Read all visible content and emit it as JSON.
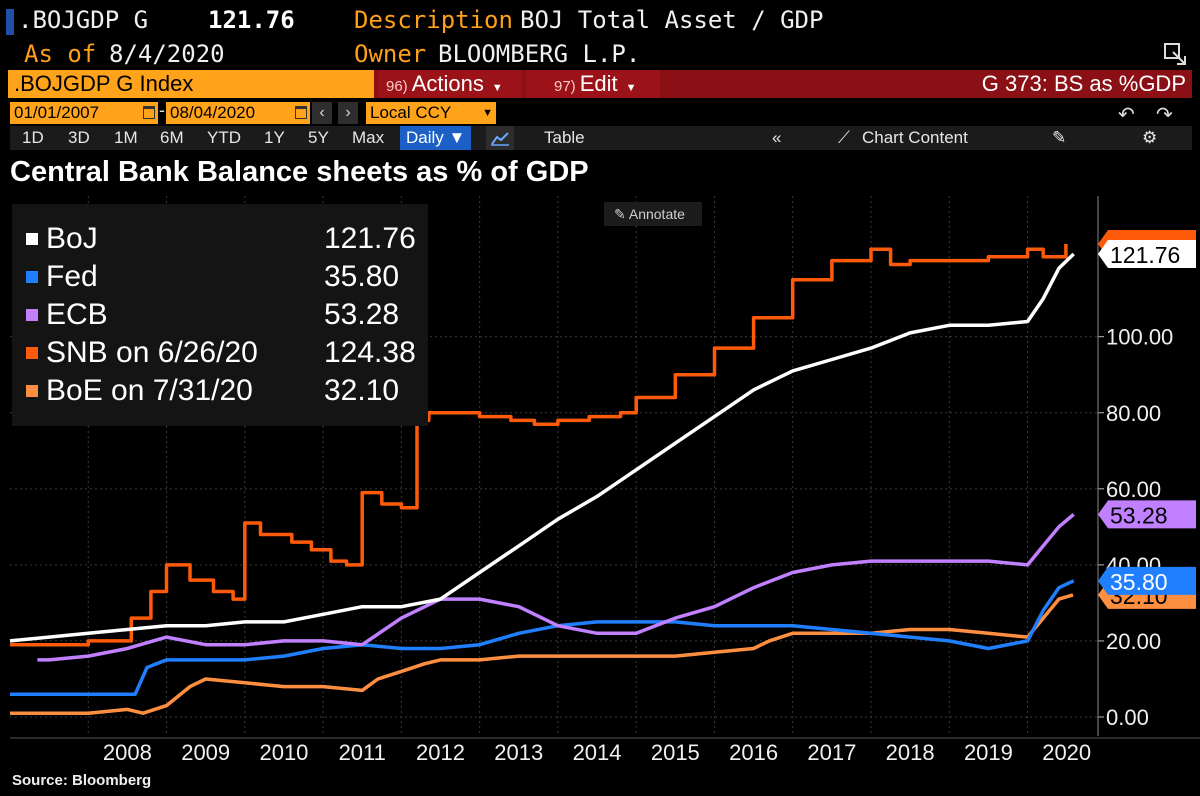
{
  "header": {
    "ticker": ".BOJGDP G",
    "last_value": "121.76",
    "description_label": "Description",
    "description": "BOJ Total Asset / GDP",
    "asof_label": "As of",
    "asof_date": "8/4/2020",
    "owner_label": "Owner",
    "owner": "BLOOMBERG L.P."
  },
  "command_bar": {
    "security": ".BOJGDP G Index",
    "actions_code": "96)",
    "actions_label": "Actions",
    "edit_code": "97)",
    "edit_label": "Edit",
    "function_label": "G 373: BS as %GDP"
  },
  "date_range": {
    "start": "01/01/2007",
    "dash": "-",
    "end": "08/04/2020",
    "currency": "Local CCY"
  },
  "toolbar": {
    "periods": [
      "1D",
      "3D",
      "1M",
      "6M",
      "YTD",
      "1Y",
      "5Y",
      "Max"
    ],
    "frequency": "Daily ▼",
    "table_label": "Table",
    "chart_content_label": "Chart Content"
  },
  "annotate_label": "Annotate",
  "source": "Source:  Bloomberg",
  "colors": {
    "boj": "#ffffff",
    "fed": "#1f7fff",
    "ecb": "#c080ff",
    "snb": "#ff5a0a",
    "boe": "#ff8f40"
  },
  "chart_data": {
    "type": "line",
    "title": "Central Bank Balance sheets as % of GDP",
    "xlabel": "",
    "ylabel": "",
    "x_ticks": [
      "2008",
      "2009",
      "2010",
      "2011",
      "2012",
      "2013",
      "2014",
      "2015",
      "2016",
      "2017",
      "2018",
      "2019",
      "2020"
    ],
    "y_ticks": [
      "0.00",
      "20.00",
      "40.00",
      "60.00",
      "80.00",
      "100.00"
    ],
    "xlim": [
      2007.0,
      2020.9
    ],
    "ylim": [
      -5,
      137
    ],
    "grid": true,
    "legend": [
      {
        "label": "BoJ",
        "value": "121.76"
      },
      {
        "label": "Fed",
        "value": "35.80"
      },
      {
        "label": "ECB",
        "value": "53.28"
      },
      {
        "label": "SNB on 6/26/20",
        "value": "124.38"
      },
      {
        "label": "BoE on 7/31/20",
        "value": "32.10"
      }
    ],
    "last_value_tags": [
      "121.76",
      "53.28",
      "35.80",
      "32.10"
    ],
    "series": [
      {
        "name": "BoJ",
        "key": "boj",
        "x": [
          2007.0,
          2007.5,
          2008.0,
          2008.5,
          2009.0,
          2009.5,
          2010.0,
          2010.5,
          2011.0,
          2011.5,
          2012.0,
          2012.5,
          2013.0,
          2013.5,
          2014.0,
          2014.5,
          2015.0,
          2015.5,
          2016.0,
          2016.5,
          2017.0,
          2017.5,
          2018.0,
          2018.5,
          2019.0,
          2019.5,
          2020.0,
          2020.2,
          2020.4,
          2020.59
        ],
        "y": [
          20,
          21,
          22,
          23,
          24,
          24,
          25,
          25,
          27,
          29,
          29,
          31,
          38,
          45,
          52,
          58,
          65,
          72,
          79,
          86,
          91,
          94,
          97,
          101,
          103,
          103,
          104,
          110,
          118,
          121.76
        ]
      },
      {
        "name": "Fed",
        "key": "fed",
        "x": [
          2007.0,
          2007.5,
          2008.0,
          2008.6,
          2008.75,
          2009.0,
          2009.5,
          2010.0,
          2010.5,
          2011.0,
          2011.5,
          2012.0,
          2012.5,
          2013.0,
          2013.5,
          2014.0,
          2014.5,
          2015.0,
          2015.5,
          2016.0,
          2016.5,
          2017.0,
          2017.5,
          2018.0,
          2018.5,
          2019.0,
          2019.5,
          2020.0,
          2020.2,
          2020.4,
          2020.59
        ],
        "y": [
          6,
          6,
          6,
          6,
          13,
          15,
          15,
          15,
          16,
          18,
          19,
          18,
          18,
          19,
          22,
          24,
          25,
          25,
          25,
          24,
          24,
          24,
          23,
          22,
          21,
          20,
          18,
          20,
          28,
          34,
          35.8
        ]
      },
      {
        "name": "ECB",
        "key": "ecb",
        "x": [
          2007.35,
          2007.5,
          2008.0,
          2008.5,
          2009.0,
          2009.5,
          2010.0,
          2010.5,
          2011.0,
          2011.5,
          2012.0,
          2012.5,
          2013.0,
          2013.5,
          2014.0,
          2014.5,
          2015.0,
          2015.5,
          2016.0,
          2016.5,
          2017.0,
          2017.5,
          2018.0,
          2018.5,
          2019.0,
          2019.5,
          2020.0,
          2020.2,
          2020.4,
          2020.59
        ],
        "y": [
          15,
          15,
          16,
          18,
          21,
          19,
          19,
          20,
          20,
          19,
          26,
          31,
          31,
          29,
          24,
          22,
          22,
          26,
          29,
          34,
          38,
          40,
          41,
          41,
          41,
          41,
          40,
          45,
          50,
          53.28
        ]
      },
      {
        "name": "SNB on 6/26/20",
        "key": "snb",
        "x": [
          2007.0,
          2007.6,
          2008.0,
          2008.3,
          2008.55,
          2008.8,
          2009.0,
          2009.3,
          2009.6,
          2009.85,
          2010.0,
          2010.2,
          2010.6,
          2010.85,
          2011.1,
          2011.3,
          2011.5,
          2011.6,
          2011.75,
          2012.0,
          2012.2,
          2012.35,
          2012.5,
          2013.0,
          2013.4,
          2013.7,
          2014.0,
          2014.4,
          2014.8,
          2015.0,
          2015.5,
          2016.0,
          2016.5,
          2017.0,
          2017.5,
          2018.0,
          2018.25,
          2018.5,
          2019.0,
          2019.5,
          2020.0,
          2020.2,
          2020.49
        ],
        "y": [
          19,
          19,
          20,
          20,
          26,
          33,
          40,
          36,
          33,
          31,
          51,
          48,
          46,
          44,
          41,
          40,
          59,
          59,
          56,
          55,
          78,
          80,
          80,
          79,
          78,
          77,
          78,
          79,
          80,
          84,
          90,
          97,
          105,
          115,
          120,
          123,
          119,
          120,
          120,
          121,
          123,
          121,
          124.38
        ]
      },
      {
        "name": "BoE on 7/31/20",
        "key": "boe",
        "x": [
          2007.0,
          2007.5,
          2008.0,
          2008.5,
          2008.7,
          2009.0,
          2009.3,
          2009.5,
          2010.0,
          2010.5,
          2011.0,
          2011.5,
          2011.7,
          2012.0,
          2012.3,
          2012.5,
          2013.0,
          2013.5,
          2014.0,
          2014.5,
          2015.0,
          2015.5,
          2016.0,
          2016.5,
          2016.7,
          2017.0,
          2017.5,
          2018.0,
          2018.5,
          2019.0,
          2019.5,
          2020.0,
          2020.2,
          2020.4,
          2020.58
        ],
        "y": [
          1,
          1,
          1,
          2,
          1,
          3,
          8,
          10,
          9,
          8,
          8,
          7,
          10,
          12,
          14,
          15,
          15,
          16,
          16,
          16,
          16,
          16,
          17,
          18,
          20,
          22,
          22,
          22,
          23,
          23,
          22,
          21,
          26,
          31,
          32.1
        ]
      }
    ]
  }
}
